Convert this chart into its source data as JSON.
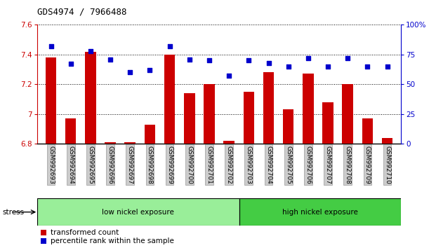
{
  "title": "GDS4974 / 7966488",
  "samples": [
    "GSM992693",
    "GSM992694",
    "GSM992695",
    "GSM992696",
    "GSM992697",
    "GSM992698",
    "GSM992699",
    "GSM992700",
    "GSM992701",
    "GSM992702",
    "GSM992703",
    "GSM992704",
    "GSM992705",
    "GSM992706",
    "GSM992707",
    "GSM992708",
    "GSM992709",
    "GSM992710"
  ],
  "transformed_count": [
    7.38,
    6.97,
    7.42,
    6.81,
    6.81,
    6.93,
    7.4,
    7.14,
    7.2,
    6.82,
    7.15,
    7.28,
    7.03,
    7.27,
    7.08,
    7.2,
    6.97,
    6.84
  ],
  "percentile_rank": [
    82,
    67,
    78,
    71,
    60,
    62,
    82,
    71,
    70,
    57,
    70,
    68,
    65,
    72,
    65,
    72,
    65,
    65
  ],
  "ylim": [
    6.8,
    7.6
  ],
  "yticks": [
    6.8,
    7.0,
    7.2,
    7.4,
    7.6
  ],
  "y2lim": [
    0,
    100
  ],
  "y2ticks": [
    0,
    25,
    50,
    75,
    100
  ],
  "bar_color": "#cc0000",
  "dot_color": "#0000cc",
  "bar_width": 0.55,
  "low_nickel_count": 10,
  "high_nickel_count": 8,
  "low_nickel_label": "low nickel exposure",
  "high_nickel_label": "high nickel exposure",
  "stress_label": "stress",
  "low_group_color": "#99ee99",
  "high_group_color": "#44cc44",
  "legend_bar_label": "transformed count",
  "legend_dot_label": "percentile rank within the sample",
  "left_axis_color": "#cc0000",
  "right_axis_color": "#0000cc",
  "tick_label_bg": "#cccccc",
  "title_fontsize": 9,
  "axis_fontsize": 7.5,
  "label_fontsize": 6.5,
  "group_fontsize": 7.5,
  "legend_fontsize": 7.5
}
